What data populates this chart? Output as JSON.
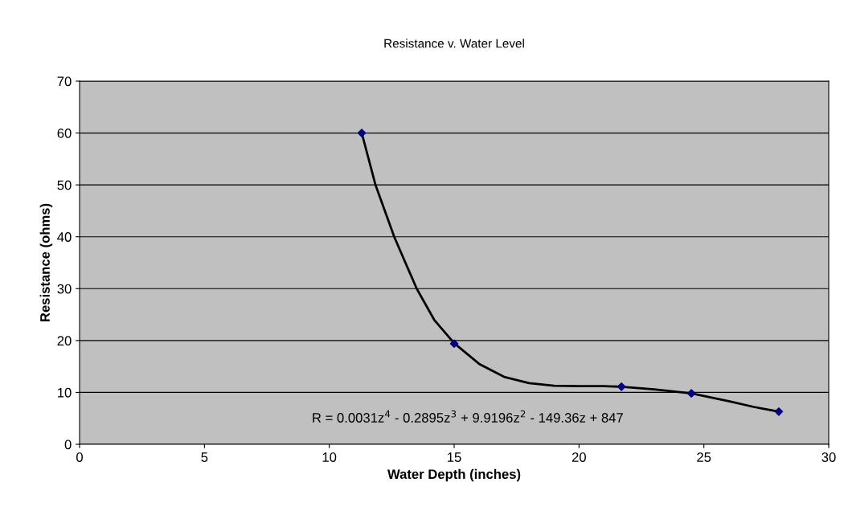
{
  "chart_data": {
    "type": "scatter",
    "title": "Resistance v. Water Level",
    "xlabel": "Water Depth (inches)",
    "ylabel": "Resistance (ohms)",
    "x": [
      11.3,
      15.0,
      21.7,
      24.5,
      28.0
    ],
    "series": [
      {
        "color": "#000080",
        "marker": "diamond",
        "values": [
          60,
          19.4,
          11.1,
          9.8,
          6.3
        ]
      },
      {
        "type": "line",
        "color": "#000000",
        "marker": "none",
        "line_style": "solid",
        "x": [
          11.3,
          11.85,
          12.6,
          13.5,
          14.2,
          15.0,
          16.0,
          17.0,
          18.0,
          19.0,
          20.0,
          21.0,
          21.7,
          23.0,
          24.5,
          26.0,
          27.0,
          28.0
        ],
        "values": [
          60,
          50,
          40,
          30,
          24,
          19.5,
          15.5,
          13,
          11.8,
          11.3,
          11.2,
          11.2,
          11.1,
          10.6,
          9.8,
          8.3,
          7.2,
          6.3
        ]
      }
    ],
    "annotations": [
      "R = 0.0031z$^{4}$ - 0.2895z$^{3}$ + 9.9196z$^{2}$ - 149.36z + 847"
    ],
    "xlim": [
      0,
      30
    ],
    "xticks": [
      0,
      5,
      10,
      15,
      20,
      25,
      30
    ],
    "ylim": [
      0,
      70
    ],
    "yticks": [
      0,
      10,
      20,
      30,
      40,
      50,
      60,
      70
    ],
    "grid": "y",
    "legend": false
  }
}
